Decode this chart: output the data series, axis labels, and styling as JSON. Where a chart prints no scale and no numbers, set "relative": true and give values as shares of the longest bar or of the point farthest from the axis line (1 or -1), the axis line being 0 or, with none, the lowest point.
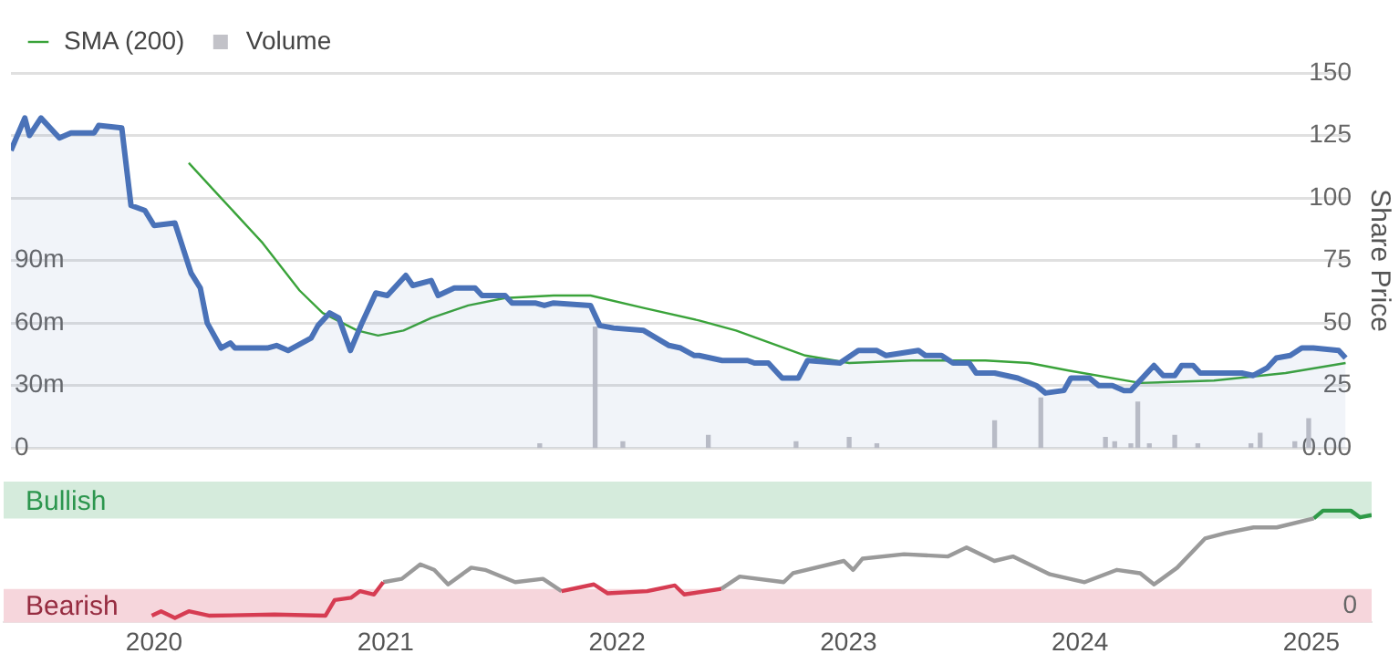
{
  "chart_data": [
    {
      "type": "line",
      "tick_labels": "y",
      "legend": "top left",
      "grid": "y",
      "y2label": "Share Price",
      "xlim": [
        2019.35,
        2025.14
      ],
      "xticks": [
        2020,
        2021,
        2022,
        2023,
        2024,
        2025
      ],
      "ylim": [
        0,
        180
      ],
      "yticks": [
        0,
        {
          "value": 30,
          "label": "30m"
        },
        {
          "value": 60,
          "label": "60m"
        },
        {
          "value": 90,
          "label": "90m"
        }
      ],
      "y2lim": [
        0,
        150
      ],
      "y2ticks": [
        {
          "value": 0,
          "label": "0.00"
        },
        25,
        50,
        75,
        100,
        125,
        150
      ],
      "series": [
        {
          "type": "area",
          "axis": "y2",
          "color": "#4a72b8",
          "x": [
            2019.35,
            2019.41,
            2019.43,
            2019.48,
            2019.56,
            2019.61,
            2019.71,
            2019.73,
            2019.83,
            2019.87,
            2019.93,
            2019.97,
            2020.06,
            2020.13,
            2020.17,
            2020.2,
            2020.26,
            2020.3,
            2020.32,
            2020.46,
            2020.5,
            2020.55,
            2020.65,
            2020.68,
            2020.73,
            2020.77,
            2020.82,
            2020.87,
            2020.93,
            2020.98,
            2021.06,
            2021.09,
            2021.17,
            2021.2,
            2021.27,
            2021.36,
            2021.39,
            2021.49,
            2021.52,
            2021.62,
            2021.66,
            2021.7,
            2021.86,
            2021.9,
            2021.96,
            2022.09,
            2022.2,
            2022.25,
            2022.31,
            2022.33,
            2022.43,
            2022.54,
            2022.57,
            2022.63,
            2022.69,
            2022.76,
            2022.8,
            2022.94,
            2023.02,
            2023.1,
            2023.14,
            2023.28,
            2023.31,
            2023.38,
            2023.43,
            2023.5,
            2023.53,
            2023.61,
            2023.71,
            2023.79,
            2023.83,
            2023.91,
            2023.94,
            2024.02,
            2024.06,
            2024.12,
            2024.17,
            2024.2,
            2024.3,
            2024.34,
            2024.39,
            2024.42,
            2024.47,
            2024.5,
            2024.68,
            2024.73,
            2024.79,
            2024.83,
            2024.89,
            2024.94,
            2024.99,
            2025.1,
            2025.13
          ],
          "values": [
            119,
            132,
            125,
            132,
            124,
            126,
            126,
            129,
            128,
            97,
            95,
            89,
            90,
            70,
            64,
            50,
            40,
            42,
            40,
            40,
            41,
            39,
            44,
            49,
            54,
            52,
            39,
            50,
            62,
            61,
            69,
            65,
            67,
            61,
            64,
            64,
            61,
            61,
            58,
            58,
            57,
            58,
            57,
            49,
            48,
            47,
            41,
            40,
            37,
            37,
            35,
            35,
            34,
            34,
            28,
            28,
            35,
            34,
            39,
            39,
            37,
            39,
            37,
            37,
            34,
            34,
            30,
            30,
            28,
            25,
            22,
            23,
            28,
            28,
            25,
            25,
            23,
            23,
            33,
            29,
            29,
            33,
            33,
            30,
            30,
            29,
            32,
            36,
            37,
            40,
            40,
            39,
            36
          ]
        },
        {
          "type": "line",
          "name": "SMA (200)",
          "axis": "y2",
          "color": "#3aa33a",
          "x": [
            2020.12,
            2020.26,
            2020.44,
            2020.6,
            2020.7,
            2020.85,
            2020.94,
            2021.05,
            2021.17,
            2021.33,
            2021.49,
            2021.7,
            2021.86,
            2022.09,
            2022.33,
            2022.49,
            2022.79,
            2022.98,
            2023.25,
            2023.57,
            2023.76,
            2023.93,
            2024.24,
            2024.56,
            2024.87,
            2025.13
          ],
          "values": [
            114,
            100,
            82,
            63,
            54,
            47,
            45,
            47,
            52,
            57,
            60,
            61,
            61,
            56,
            51,
            47,
            37,
            34,
            35,
            35,
            34,
            31,
            26,
            27,
            30,
            34
          ]
        },
        {
          "type": "bar",
          "name": "Volume",
          "axis": "y",
          "color": "#c2c2c8",
          "x": [
            2021.64,
            2021.88,
            2022.0,
            2022.37,
            2022.75,
            2022.98,
            2023.1,
            2023.61,
            2023.81,
            2024.09,
            2024.13,
            2024.2,
            2024.23,
            2024.28,
            2024.39,
            2024.49,
            2024.72,
            2024.76,
            2024.91,
            2024.97
          ],
          "values": [
            2,
            58,
            3,
            6,
            3,
            5,
            2,
            13,
            24,
            5,
            3,
            2,
            22,
            2,
            6,
            2,
            2,
            7,
            3,
            14
          ]
        }
      ]
    },
    {
      "type": "line",
      "relative": true,
      "xlim": [
        2019.35,
        2025.26
      ],
      "xticks": [
        2020,
        2021,
        2022,
        2023,
        2024,
        2025
      ],
      "annotations": [
        "0"
      ],
      "bands": [
        {
          "axis": "y",
          "from": 0.93,
          "to": 1.26,
          "label": "Bullish",
          "color": "#d5ebdc"
        },
        {
          "axis": "y",
          "from": 0,
          "to": 0.3,
          "label": "Bearish",
          "color": "#f6d6dc"
        }
      ],
      "series": [
        {
          "color": "#d63c52",
          "x": [
            2019.99,
            2020.03,
            2020.09,
            2020.15,
            2020.24,
            2020.52,
            2020.74,
            2020.78,
            2020.85,
            2020.89,
            2020.95,
            2020.99,
            2021.4,
            2021.76,
            2021.9,
            2021.96,
            2022.13,
            2022.25,
            2022.29,
            2022.45
          ],
          "values": [
            0.06,
            0.1,
            0.04,
            0.1,
            0.06,
            0.07,
            0.06,
            0.2,
            0.22,
            0.28,
            0.25,
            0.36,
            null,
            0.28,
            0.34,
            0.26,
            0.28,
            0.33,
            0.25,
            0.3
          ]
        },
        {
          "color": "#9a9a9a",
          "x": [
            2020.99,
            2021.07,
            2021.15,
            2021.21,
            2021.27,
            2021.37,
            2021.43,
            2021.56,
            2021.68,
            2021.76,
            2022.1,
            2022.45,
            2022.53,
            2022.72,
            2022.76,
            2022.98,
            2023.02,
            2023.06,
            2023.24,
            2023.43,
            2023.51,
            2023.63,
            2023.71,
            2023.87,
            2024.02,
            2024.16,
            2024.26,
            2024.32,
            2024.42,
            2024.54,
            2024.63,
            2024.75,
            2024.85,
            2025.01
          ],
          "values": [
            0.36,
            0.39,
            0.52,
            0.47,
            0.34,
            0.49,
            0.47,
            0.36,
            0.39,
            0.28,
            null,
            0.3,
            0.41,
            0.36,
            0.44,
            0.55,
            0.47,
            0.57,
            0.61,
            0.59,
            0.67,
            0.55,
            0.59,
            0.43,
            0.36,
            0.47,
            0.44,
            0.34,
            0.49,
            0.75,
            0.8,
            0.85,
            0.85,
            0.93
          ]
        },
        {
          "color": "#2f9a48",
          "x": [
            2025.01,
            2025.05,
            2025.17,
            2025.21,
            2025.26
          ],
          "values": [
            0.93,
            1,
            1,
            0.94,
            0.96
          ]
        }
      ]
    }
  ]
}
